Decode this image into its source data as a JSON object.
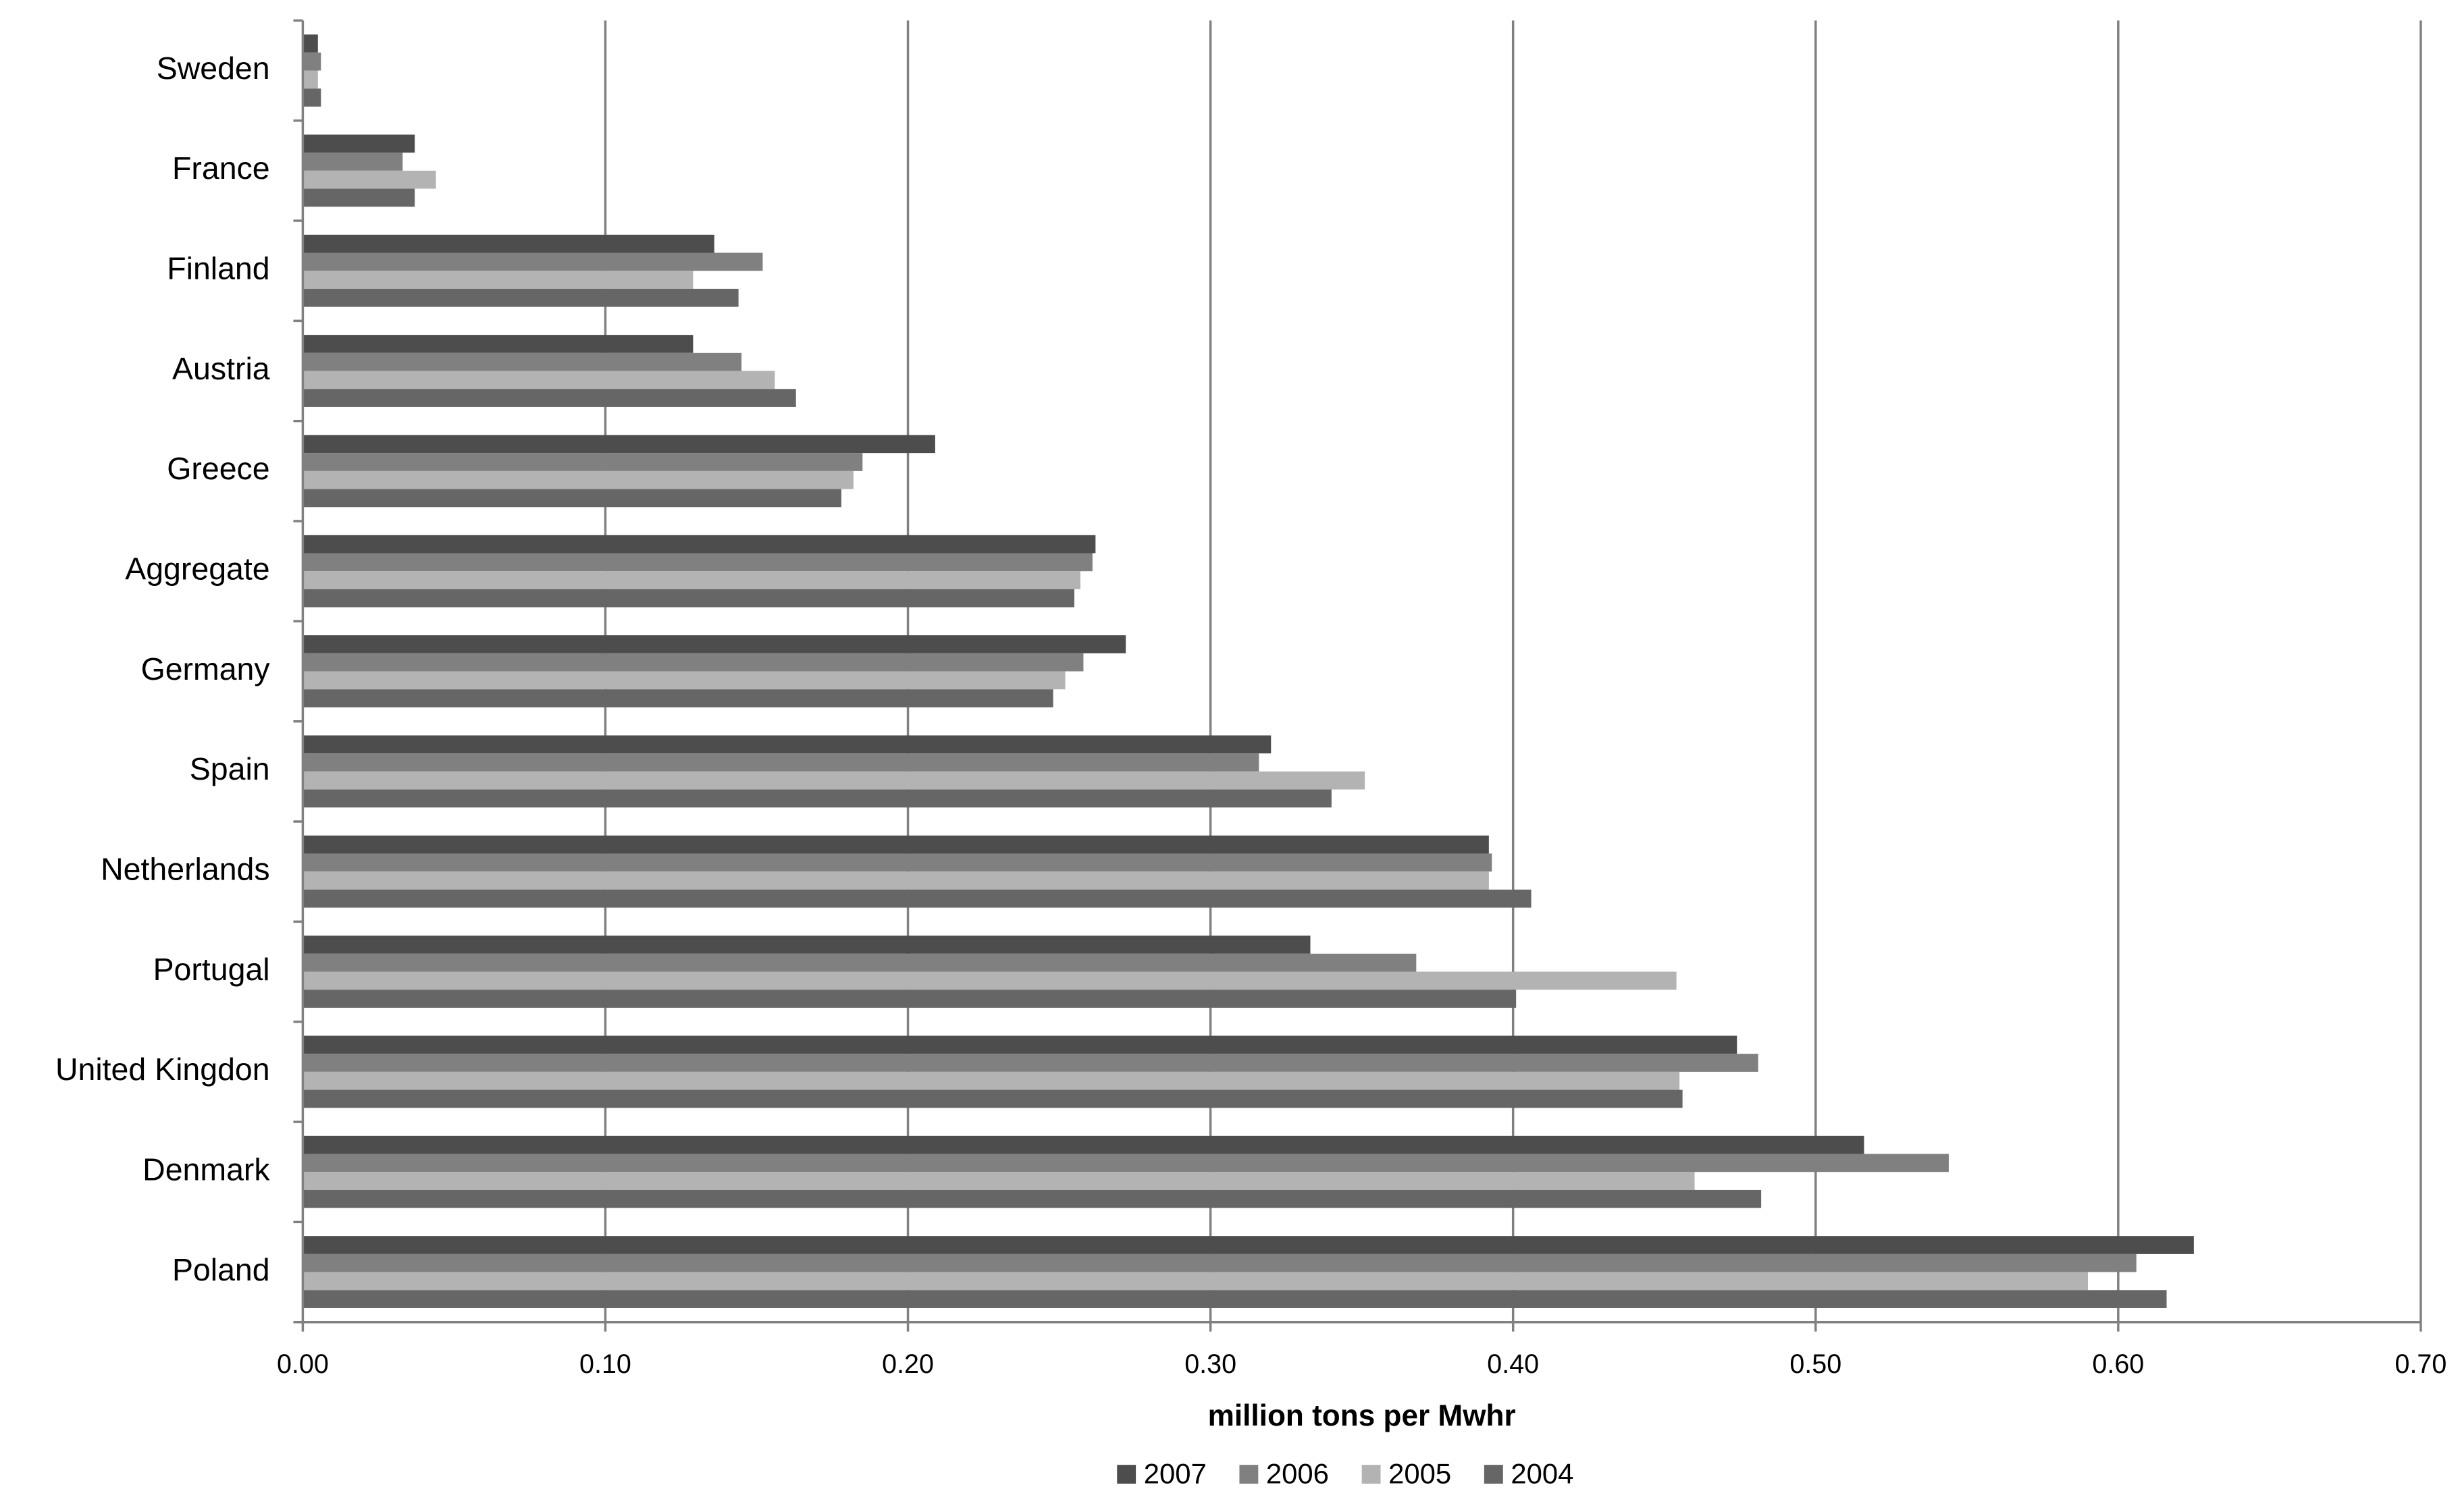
{
  "chart_data": {
    "type": "barh",
    "xlabel": "million tons per Mwhr",
    "categories": [
      "Sweden",
      "France",
      "Finland",
      "Austria",
      "Greece",
      "Aggregate",
      "Germany",
      "Spain",
      "Netherlands",
      "Portugal",
      "United Kingdon",
      "Denmark",
      "Poland"
    ],
    "series": [
      {
        "name": "2007",
        "color": "#4d4d4d",
        "values": [
          0.005,
          0.037,
          0.136,
          0.129,
          0.209,
          0.262,
          0.272,
          0.32,
          0.392,
          0.333,
          0.474,
          0.516,
          0.625
        ]
      },
      {
        "name": "2006",
        "color": "#808080",
        "values": [
          0.006,
          0.033,
          0.152,
          0.145,
          0.185,
          0.261,
          0.258,
          0.316,
          0.393,
          0.368,
          0.481,
          0.544,
          0.606
        ]
      },
      {
        "name": "2005",
        "color": "#b3b3b3",
        "values": [
          0.005,
          0.044,
          0.129,
          0.156,
          0.182,
          0.257,
          0.252,
          0.351,
          0.392,
          0.454,
          0.455,
          0.46,
          0.59
        ]
      },
      {
        "name": "2004",
        "color": "#666666",
        "values": [
          0.006,
          0.037,
          0.144,
          0.163,
          0.178,
          0.255,
          0.248,
          0.34,
          0.406,
          0.401,
          0.456,
          0.482,
          0.616
        ]
      }
    ],
    "xlim": [
      0,
      0.7
    ],
    "xticks": [
      {
        "value": 0,
        "label": "0.00"
      },
      {
        "value": 0.1,
        "label": "0.10"
      },
      {
        "value": 0.2,
        "label": "0.20"
      },
      {
        "value": 0.3,
        "label": "0.30"
      },
      {
        "value": 0.4,
        "label": "0.40"
      },
      {
        "value": 0.5,
        "label": "0.50"
      },
      {
        "value": 0.6,
        "label": "0.60"
      },
      {
        "value": 0.7,
        "label": "0.70"
      }
    ],
    "grid": true,
    "legend": "bottom"
  }
}
